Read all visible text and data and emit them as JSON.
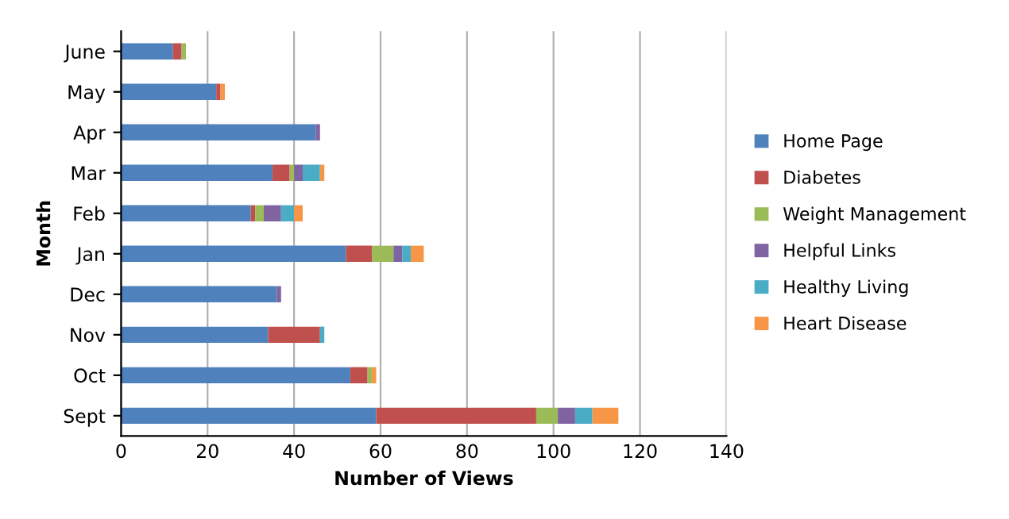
{
  "chart_data": {
    "type": "bar",
    "orientation": "horizontal",
    "stacked": true,
    "xlabel": "Number of Views",
    "ylabel": "Month",
    "categories": [
      "June",
      "May",
      "Apr",
      "Mar",
      "Feb",
      "Jan",
      "Dec",
      "Nov",
      "Oct",
      "Sept"
    ],
    "series": [
      {
        "name": "Home Page",
        "color": "#4f81bd",
        "values": [
          12,
          22,
          45,
          35,
          30,
          52,
          36,
          34,
          53,
          59
        ]
      },
      {
        "name": "Diabetes",
        "color": "#c0504d",
        "values": [
          2,
          1,
          0,
          4,
          1,
          6,
          0,
          12,
          4,
          37
        ]
      },
      {
        "name": "Weight Management",
        "color": "#9bbb59",
        "values": [
          1,
          0,
          0,
          1,
          2,
          5,
          0,
          0,
          1,
          5
        ]
      },
      {
        "name": "Helpful Links",
        "color": "#8064a2",
        "values": [
          0,
          0,
          1,
          2,
          4,
          2,
          1,
          0,
          0,
          4
        ]
      },
      {
        "name": "Healthy Living",
        "color": "#4bacc6",
        "values": [
          0,
          0,
          0,
          4,
          3,
          2,
          0,
          1,
          0,
          4
        ]
      },
      {
        "name": "Heart Disease",
        "color": "#f79646",
        "values": [
          0,
          1,
          0,
          1,
          2,
          3,
          0,
          0,
          1,
          6
        ]
      }
    ],
    "xlim": [
      0,
      140
    ],
    "xticks": [
      0,
      20,
      40,
      60,
      80,
      100,
      120,
      140
    ],
    "grid": "x",
    "legend": "right"
  }
}
